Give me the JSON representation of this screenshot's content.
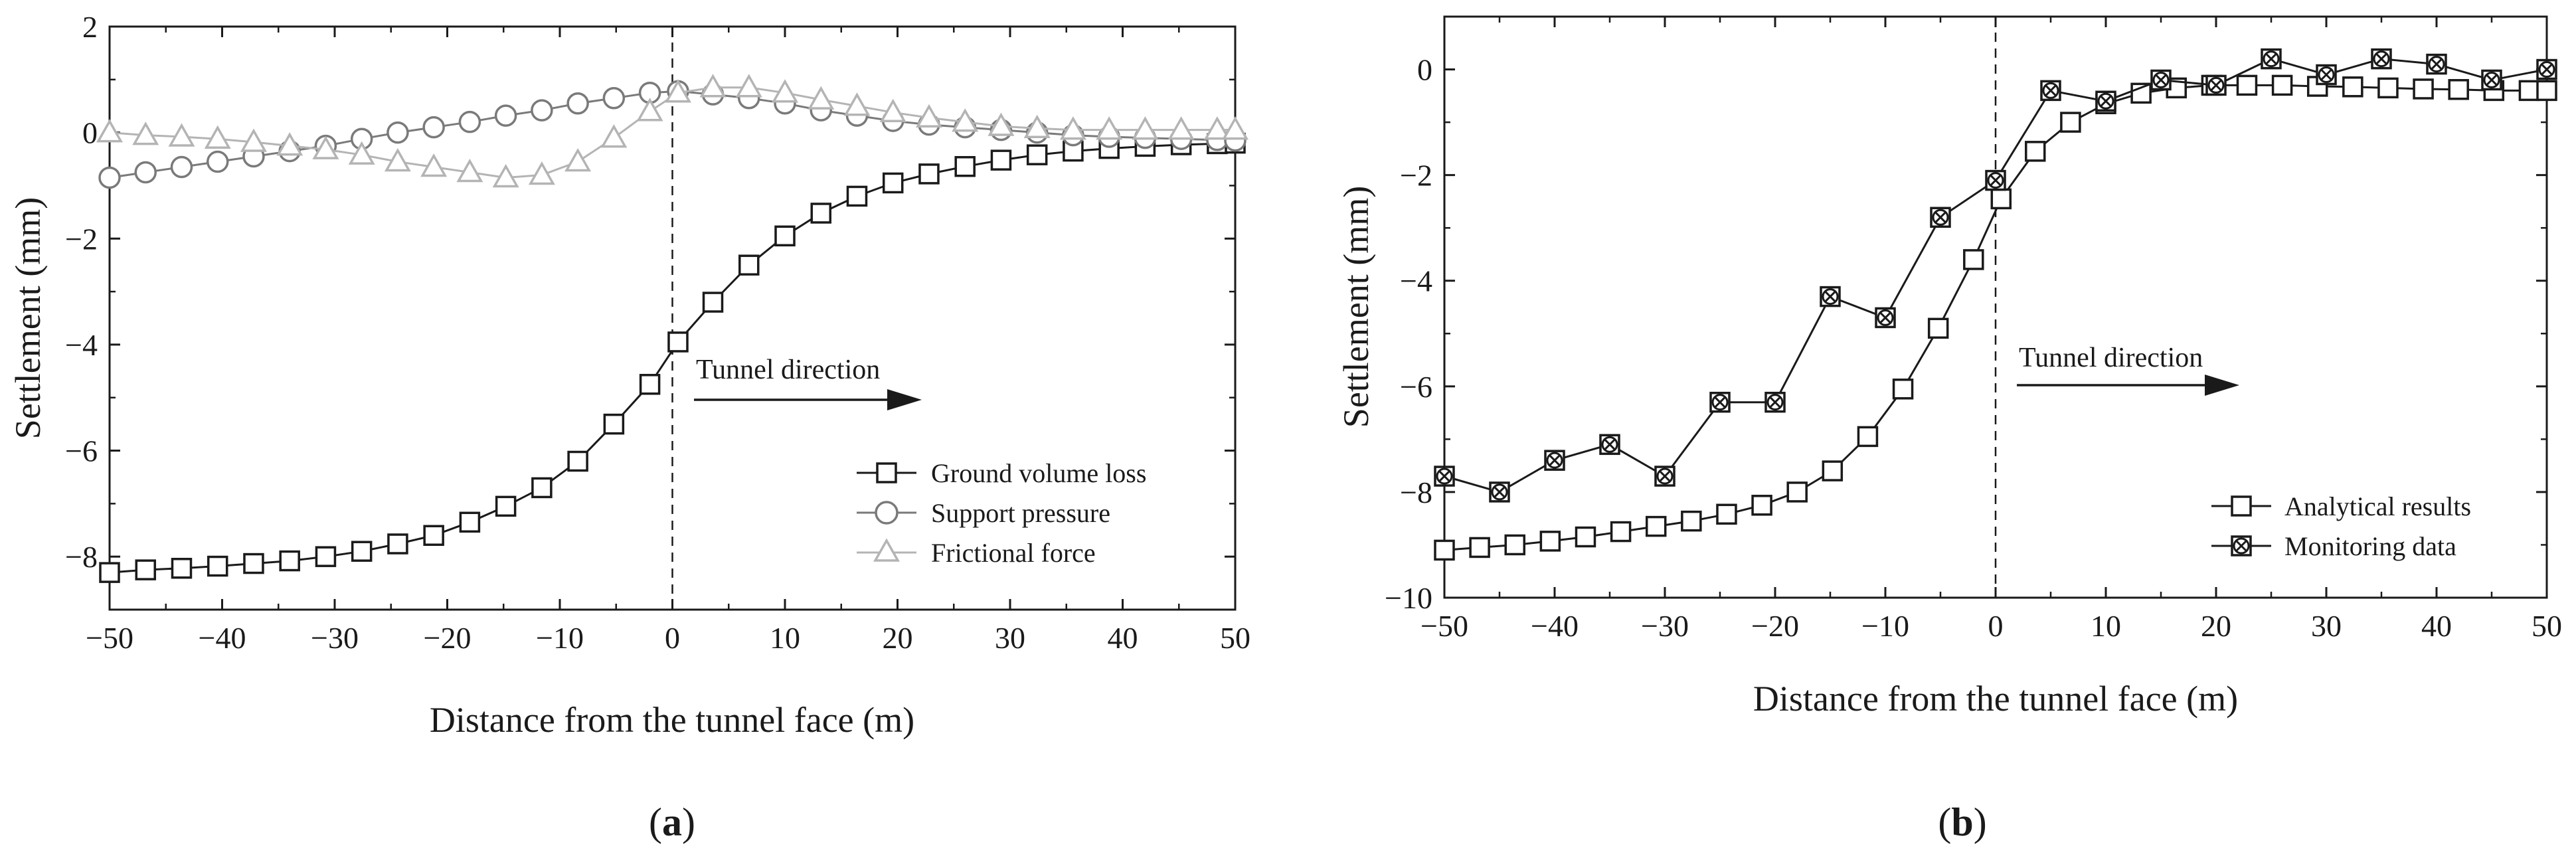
{
  "chart_data": [
    {
      "type": "line",
      "panel_label": "a",
      "xlabel": "Distance from the tunnel face (m)",
      "ylabel": "Settlement (mm)",
      "xlim": [
        -50,
        50
      ],
      "ylim": [
        -9,
        2
      ],
      "xticks": [
        -50,
        -40,
        -30,
        -20,
        -10,
        0,
        10,
        20,
        30,
        40,
        50
      ],
      "yticks": [
        2,
        0,
        -2,
        -4,
        -6,
        -8
      ],
      "annotation": "Tunnel direction",
      "series": [
        {
          "name": "Ground volume loss",
          "marker": "square",
          "color": "#1a1a1a",
          "x": [
            -50,
            -46.8,
            -43.6,
            -40.4,
            -37.2,
            -34,
            -30.8,
            -27.6,
            -24.4,
            -21.2,
            -18,
            -14.8,
            -11.6,
            -8.4,
            -5.2,
            -2,
            0.5,
            3.6,
            6.8,
            10,
            13.2,
            16.4,
            19.6,
            22.8,
            26,
            29.2,
            32.4,
            35.6,
            38.8,
            42,
            45.2,
            48.4,
            50
          ],
          "y": [
            -8.3,
            -8.25,
            -8.22,
            -8.18,
            -8.13,
            -8.08,
            -8.0,
            -7.9,
            -7.76,
            -7.6,
            -7.35,
            -7.05,
            -6.7,
            -6.2,
            -5.5,
            -4.75,
            -3.95,
            -3.2,
            -2.5,
            -1.95,
            -1.52,
            -1.2,
            -0.95,
            -0.78,
            -0.64,
            -0.52,
            -0.42,
            -0.35,
            -0.3,
            -0.26,
            -0.23,
            -0.21,
            -0.2
          ]
        },
        {
          "name": "Support pressure",
          "marker": "circle",
          "color": "#7a7a7a",
          "x": [
            -50,
            -46.8,
            -43.6,
            -40.4,
            -37.2,
            -34,
            -30.8,
            -27.6,
            -24.4,
            -21.2,
            -18,
            -14.8,
            -11.6,
            -8.4,
            -5.2,
            -2,
            0.5,
            3.6,
            6.8,
            10,
            13.2,
            16.4,
            19.6,
            22.8,
            26,
            29.2,
            32.4,
            35.6,
            38.8,
            42,
            45.2,
            48.4,
            50
          ],
          "y": [
            -0.85,
            -0.75,
            -0.65,
            -0.55,
            -0.45,
            -0.35,
            -0.25,
            -0.12,
            0.0,
            0.1,
            0.2,
            0.32,
            0.42,
            0.55,
            0.65,
            0.75,
            0.78,
            0.72,
            0.65,
            0.55,
            0.42,
            0.32,
            0.22,
            0.15,
            0.1,
            0.05,
            0.0,
            -0.05,
            -0.08,
            -0.1,
            -0.12,
            -0.14,
            -0.15
          ]
        },
        {
          "name": "Frictional force",
          "marker": "triangle",
          "color": "#b4b4b4",
          "x": [
            -50,
            -46.8,
            -43.6,
            -40.4,
            -37.2,
            -34,
            -30.8,
            -27.6,
            -24.4,
            -21.2,
            -18,
            -14.8,
            -11.6,
            -8.4,
            -5.2,
            -2,
            0.5,
            3.6,
            6.8,
            10,
            13.2,
            16.4,
            19.6,
            22.8,
            26,
            29.2,
            32.4,
            35.6,
            38.8,
            42,
            45.2,
            48.4,
            50
          ],
          "y": [
            0.0,
            -0.05,
            -0.08,
            -0.12,
            -0.18,
            -0.25,
            -0.32,
            -0.42,
            -0.55,
            -0.65,
            -0.75,
            -0.85,
            -0.8,
            -0.55,
            -0.1,
            0.4,
            0.75,
            0.85,
            0.85,
            0.75,
            0.62,
            0.5,
            0.38,
            0.28,
            0.2,
            0.12,
            0.08,
            0.05,
            0.05,
            0.05,
            0.05,
            0.05,
            0.05
          ]
        }
      ]
    },
    {
      "type": "line",
      "panel_label": "b",
      "xlabel": "Distance from the tunnel face (m)",
      "ylabel": "Settlement (mm)",
      "xlim": [
        -50,
        50
      ],
      "ylim": [
        -10,
        1
      ],
      "xticks": [
        -50,
        -40,
        -30,
        -20,
        -10,
        0,
        10,
        20,
        30,
        40,
        50
      ],
      "yticks": [
        0,
        -2,
        -4,
        -6,
        -8,
        -10
      ],
      "annotation": "Tunnel direction",
      "series": [
        {
          "name": "Analytical results",
          "marker": "square",
          "color": "#1a1a1a",
          "x": [
            -50,
            -46.8,
            -43.6,
            -40.4,
            -37.2,
            -34,
            -30.8,
            -27.6,
            -24.4,
            -21.2,
            -18,
            -14.8,
            -11.6,
            -8.4,
            -5.2,
            -2,
            0.5,
            3.6,
            6.8,
            10,
            13.2,
            16.4,
            19.6,
            22.8,
            26,
            29.2,
            32.4,
            35.6,
            38.8,
            42,
            45.2,
            48.4,
            50
          ],
          "y": [
            -9.1,
            -9.05,
            -9.0,
            -8.93,
            -8.85,
            -8.75,
            -8.65,
            -8.55,
            -8.42,
            -8.25,
            -8.0,
            -7.6,
            -6.95,
            -6.05,
            -4.9,
            -3.6,
            -2.45,
            -1.55,
            -1.0,
            -0.65,
            -0.45,
            -0.35,
            -0.3,
            -0.3,
            -0.3,
            -0.32,
            -0.33,
            -0.35,
            -0.37,
            -0.38,
            -0.4,
            -0.4,
            -0.4
          ]
        },
        {
          "name": "Monitoring data",
          "marker": "crossed-circle-square",
          "color": "#1a1a1a",
          "x": [
            -50,
            -45,
            -40,
            -35,
            -30,
            -25,
            -20,
            -15,
            -10,
            -5,
            0,
            5,
            10,
            15,
            20,
            25,
            30,
            35,
            40,
            45,
            50
          ],
          "y": [
            -7.7,
            -8.0,
            -7.4,
            -7.1,
            -7.7,
            -6.3,
            -6.3,
            -4.3,
            -4.7,
            -2.8,
            -2.1,
            -0.4,
            -0.6,
            -0.2,
            -0.3,
            0.2,
            -0.1,
            0.2,
            0.1,
            -0.2,
            0.0
          ]
        }
      ]
    }
  ]
}
